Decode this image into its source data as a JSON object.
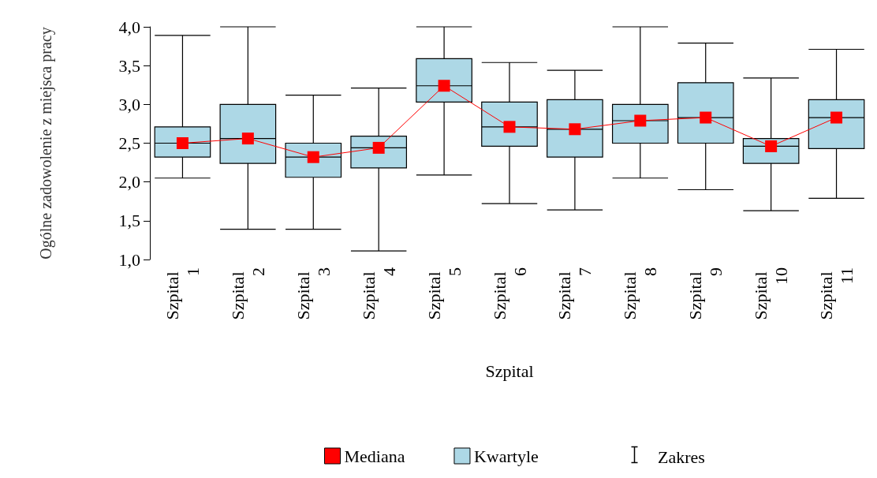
{
  "chart_data": {
    "type": "box",
    "xlabel": "Szpital",
    "ylabel": "Ogólne zadowolenie z miejsca pracy",
    "categories": [
      "Szpital 1",
      "Szpital 2",
      "Szpital 3",
      "Szpital 4",
      "Szpital 5",
      "Szpital 6",
      "Szpital 7",
      "Szpital 8",
      "Szpital 9",
      "Szpital 10",
      "Szpital 11"
    ],
    "series": [
      {
        "name": "Mediana",
        "type": "line",
        "color": "#ff0000",
        "marker": "square",
        "values": [
          2.5,
          2.56,
          2.32,
          2.44,
          3.24,
          2.71,
          2.68,
          2.79,
          2.83,
          2.46,
          2.83
        ]
      },
      {
        "name": "Kwartyle",
        "type": "box",
        "color": "#add8e6",
        "boxes": [
          {
            "low": 2.05,
            "q1": 2.32,
            "median": 2.5,
            "q3": 2.71,
            "high": 3.89
          },
          {
            "low": 1.39,
            "q1": 2.24,
            "median": 2.56,
            "q3": 3.0,
            "high": 4.0
          },
          {
            "low": 1.39,
            "q1": 2.06,
            "median": 2.32,
            "q3": 2.5,
            "high": 3.12
          },
          {
            "low": 1.11,
            "q1": 2.18,
            "median": 2.44,
            "q3": 2.59,
            "high": 3.21
          },
          {
            "low": 2.09,
            "q1": 3.03,
            "median": 3.24,
            "q3": 3.59,
            "high": 4.0
          },
          {
            "low": 1.72,
            "q1": 2.46,
            "median": 2.71,
            "q3": 3.03,
            "high": 3.54
          },
          {
            "low": 1.64,
            "q1": 2.32,
            "median": 2.68,
            "q3": 3.06,
            "high": 3.44
          },
          {
            "low": 2.05,
            "q1": 2.5,
            "median": 2.79,
            "q3": 3.0,
            "high": 4.0
          },
          {
            "low": 1.9,
            "q1": 2.5,
            "median": 2.83,
            "q3": 3.28,
            "high": 3.79
          },
          {
            "low": 1.63,
            "q1": 2.24,
            "median": 2.46,
            "q3": 2.56,
            "high": 3.34
          },
          {
            "low": 1.79,
            "q1": 2.43,
            "median": 2.83,
            "q3": 3.06,
            "high": 3.71
          }
        ]
      }
    ],
    "annotations": [
      "Zakres"
    ],
    "ylim": [
      1,
      4
    ],
    "yticks": [
      {
        "value": 1,
        "label": "1,0"
      },
      {
        "value": 1.5,
        "label": "1,5"
      },
      {
        "value": 2,
        "label": "2,0"
      },
      {
        "value": 2.5,
        "label": "2,5"
      },
      {
        "value": 3,
        "label": "3,0"
      },
      {
        "value": 3.5,
        "label": "3,5"
      },
      {
        "value": 4,
        "label": "4,0"
      }
    ],
    "grid": false,
    "legend": "bottom"
  }
}
